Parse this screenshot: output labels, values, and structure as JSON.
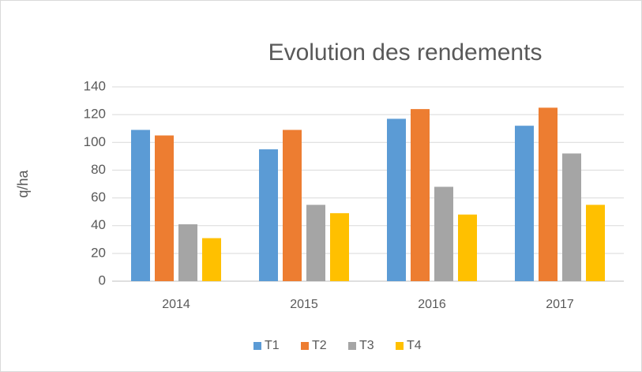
{
  "chart_data": {
    "type": "bar",
    "title": "Evolution des rendements",
    "y_label": "q/ha",
    "categories": [
      "2014",
      "2015",
      "2016",
      "2017"
    ],
    "series": [
      {
        "name": "T1",
        "color": "#5b9bd5",
        "values": [
          109,
          95,
          117,
          112
        ]
      },
      {
        "name": "T2",
        "color": "#ed7d31",
        "values": [
          105,
          109,
          124,
          125
        ]
      },
      {
        "name": "T3",
        "color": "#a5a5a5",
        "values": [
          41,
          55,
          68,
          92
        ]
      },
      {
        "name": "T4",
        "color": "#ffc000",
        "values": [
          31,
          49,
          48,
          55
        ]
      }
    ],
    "ylim": [
      0,
      140
    ],
    "yticks": [
      0,
      20,
      40,
      60,
      80,
      100,
      120,
      140
    ],
    "grid": true,
    "legend": "bottom"
  }
}
